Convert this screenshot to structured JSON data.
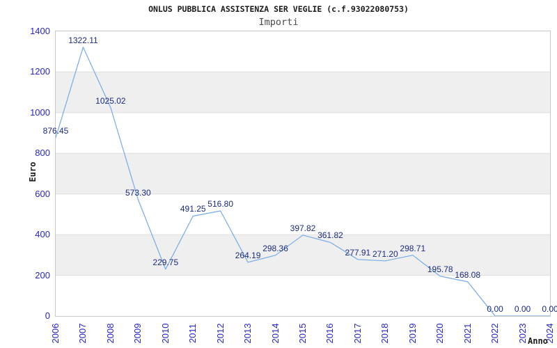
{
  "page": {
    "title": "ONLUS PUBBLICA ASSISTENZA SER VEGLIE (c.f.93022080753)",
    "subtitle": "Importi"
  },
  "chart_data": {
    "type": "line",
    "title": "ONLUS PUBBLICA ASSISTENZA SER VEGLIE (c.f.93022080753)",
    "subtitle": "Importi",
    "xlabel": "Anno",
    "ylabel": "Euro",
    "x": [
      "2006",
      "2007",
      "2008",
      "2009",
      "2010",
      "2011",
      "2012",
      "2013",
      "2014",
      "2015",
      "2016",
      "2017",
      "2018",
      "2019",
      "2020",
      "2021",
      "2022",
      "2023",
      "2024"
    ],
    "values": [
      876.45,
      1322.11,
      1025.02,
      573.3,
      229.75,
      491.25,
      516.8,
      264.19,
      298.36,
      397.82,
      361.82,
      277.91,
      271.2,
      298.71,
      195.78,
      168.08,
      0.0,
      0.0,
      0.0
    ],
    "point_labels": [
      "876.45",
      "1322.11",
      "1025.02",
      "573.30",
      "229.75",
      "491.25",
      "516.80",
      "264.19",
      "298.36",
      "397.82",
      "361.82",
      "277.91",
      "271.20",
      "298.71",
      "195.78",
      "168.08",
      "0.00",
      "0.00",
      "0.00"
    ],
    "y_ticks": [
      "0",
      "200",
      "400",
      "600",
      "800",
      "1000",
      "1200",
      "1400"
    ],
    "ylim": [
      0,
      1400
    ],
    "y_tick_step": 200,
    "grid": "alternating-horizontal-bands",
    "legend": "none",
    "colors": {
      "line": "#74aae8",
      "tick_labels": "#2525cd",
      "point_labels": "#1b2b80",
      "band": "#efefef",
      "gridline": "#dfdfdf",
      "plot_border": "#c9c9c9",
      "title": "#1b1b1b",
      "subtitle": "#4a4a4a"
    }
  }
}
